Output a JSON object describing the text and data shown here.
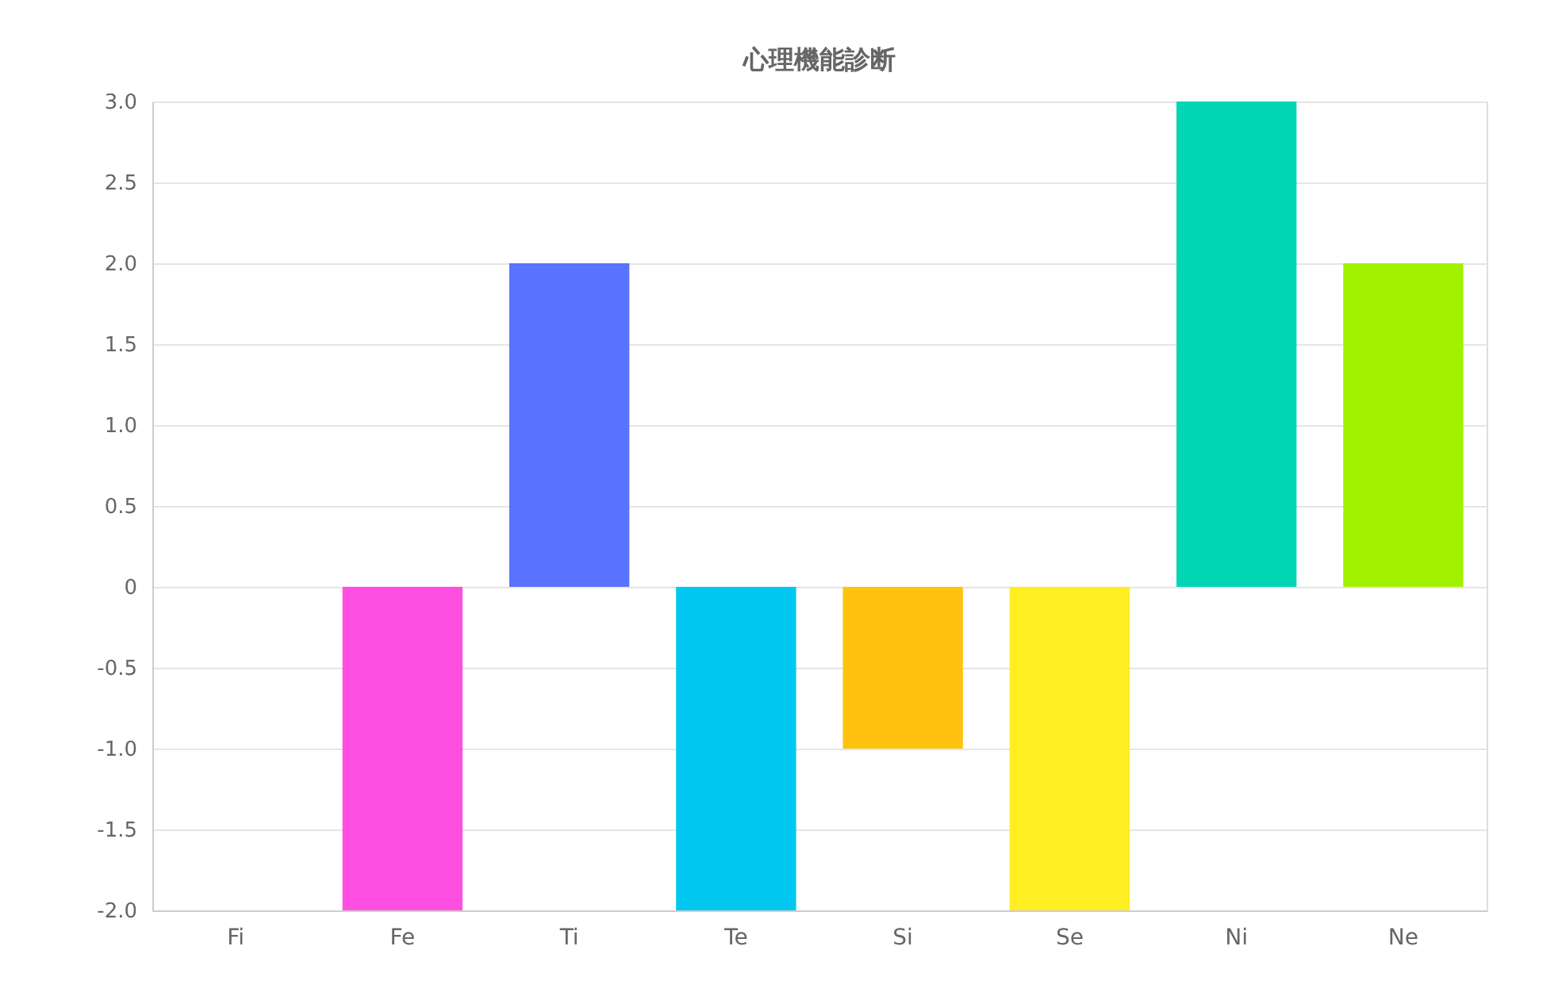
{
  "chart_data": {
    "type": "bar",
    "title": "心理機能診断",
    "categories": [
      "Fi",
      "Fe",
      "Ti",
      "Te",
      "Si",
      "Se",
      "Ni",
      "Ne"
    ],
    "values": [
      0,
      -2,
      2,
      -2,
      -1,
      -2,
      3,
      2
    ],
    "colors": [
      "#ff6384",
      "#ff4fe0",
      "#5773ff",
      "#00c8f0",
      "#ffc30f",
      "#ffee22",
      "#00d6b4",
      "#a2f200"
    ],
    "ylim": [
      -2,
      3
    ],
    "yticks": [
      {
        "value": -2,
        "label": "-2.0"
      },
      -1.5,
      {
        "value": -1,
        "label": "-1.0"
      },
      -0.5,
      0,
      0.5,
      {
        "value": 1,
        "label": "1.0"
      },
      1.5,
      {
        "value": 2,
        "label": "2.0"
      },
      2.5,
      {
        "value": 3,
        "label": "3.0"
      }
    ],
    "grid": "y"
  }
}
